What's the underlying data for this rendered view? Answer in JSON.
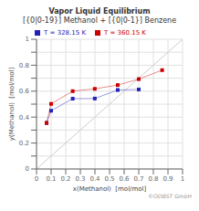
{
  "chart_data": {
    "type": "line",
    "title": "Vapor Liquid Equilibrium",
    "subtitle": "[{0|0-19}] Methanol + [{0|0-1}] Benzene",
    "x_label": "x(Methanol)  [mol/mol]",
    "y_label": "y(Methanol)  [mol/mol]",
    "series": [
      {
        "name": "T = 328.15 K",
        "color": "#2222bb",
        "marker": "square",
        "x": [
          0.069,
          0.1,
          0.248,
          0.399,
          0.556,
          0.7
        ],
        "values": [
          0.355,
          0.449,
          0.542,
          0.543,
          0.609,
          0.613
        ]
      },
      {
        "name": "T = 360.15 K",
        "color": "#cc0000",
        "marker": "square",
        "x": [
          0.069,
          0.1,
          0.248,
          0.399,
          0.556,
          0.7,
          0.86
        ],
        "values": [
          0.355,
          0.502,
          0.6,
          0.618,
          0.647,
          0.693,
          0.762
        ]
      }
    ],
    "xlim": [
      0,
      1
    ],
    "ylim": [
      0,
      1
    ],
    "xticks": [
      0,
      0.1,
      0.2,
      0.3,
      0.4,
      0.5,
      0.6,
      0.7,
      0.8,
      0.9,
      1
    ],
    "yticks": [
      0,
      {
        "value": 0.1,
        "label": null
      },
      0.2,
      {
        "value": 0.3,
        "label": null
      },
      0.4,
      {
        "value": 0.5,
        "label": null
      },
      0.6,
      {
        "value": 0.7,
        "label": null
      },
      0.8,
      {
        "value": 0.9,
        "label": null
      },
      1
    ],
    "grid": true,
    "legend": "top",
    "annotations": [
      "©ODBST GmbH"
    ]
  }
}
